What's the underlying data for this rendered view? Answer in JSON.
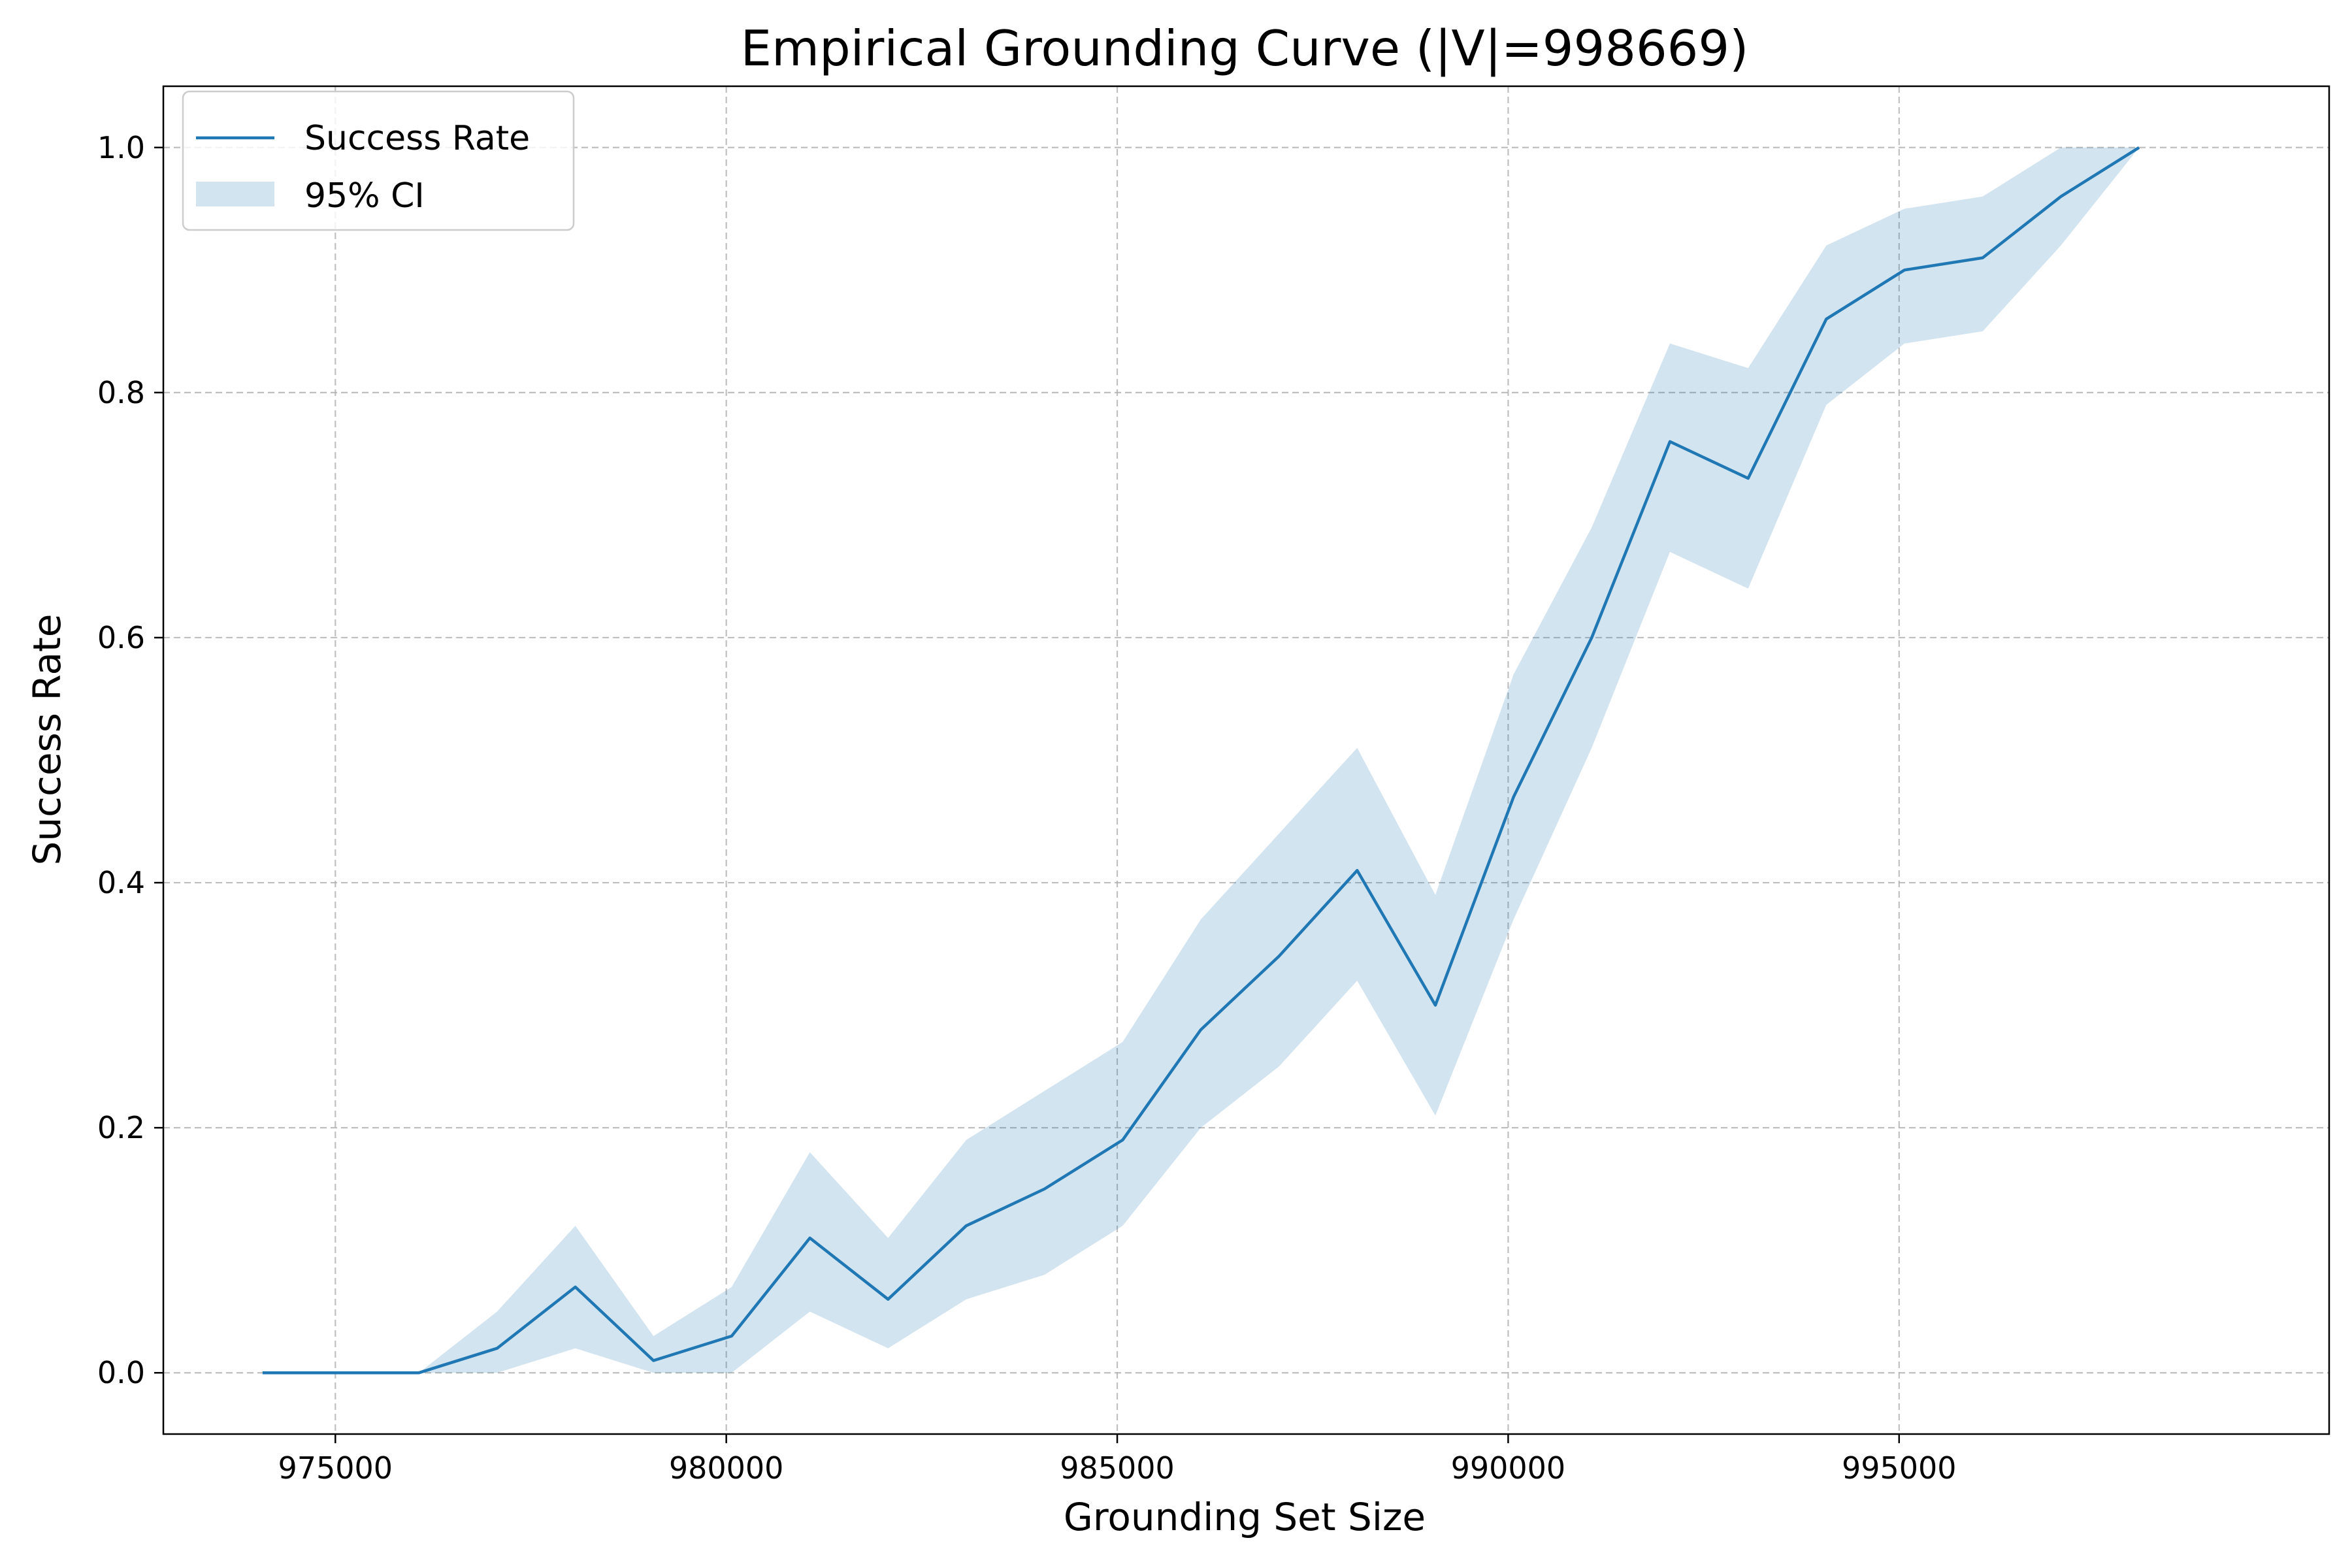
{
  "chart_data": {
    "type": "line",
    "title": "Empirical Grounding Curve (|V|=998669)",
    "xlabel": "Grounding Set Size",
    "ylabel": "Success Rate",
    "xlim": [
      972800,
      1000500
    ],
    "ylim": [
      -0.05,
      1.05
    ],
    "xticks": [
      975000,
      980000,
      985000,
      990000,
      995000
    ],
    "xtick_labels": [
      "975000",
      "980000",
      "985000",
      "990000",
      "995000"
    ],
    "yticks": [
      0.0,
      0.2,
      0.4,
      0.6,
      0.8,
      1.0
    ],
    "ytick_labels": [
      "0.0",
      "0.2",
      "0.4",
      "0.6",
      "0.8",
      "1.0"
    ],
    "grid": true,
    "legend_position": "top-left",
    "x": [
      974069,
      975069,
      976069,
      977069,
      978069,
      979069,
      980069,
      981069,
      982069,
      983069,
      984069,
      985069,
      986069,
      987069,
      988069,
      989069,
      990069,
      991069,
      992069,
      993069,
      994069,
      995069,
      996069,
      997069,
      998069
    ],
    "series": [
      {
        "name": "Success Rate",
        "color": "#1f77b4",
        "values": [
          0.0,
          0.0,
          0.0,
          0.02,
          0.07,
          0.01,
          0.03,
          0.11,
          0.06,
          0.12,
          0.15,
          0.19,
          0.28,
          0.34,
          0.41,
          0.3,
          0.47,
          0.6,
          0.76,
          0.73,
          0.86,
          0.9,
          0.91,
          0.96,
          1.0
        ]
      }
    ],
    "confidence_band": {
      "name": "95% CI",
      "color": "#1f77b4",
      "lower": [
        0.0,
        0.0,
        0.0,
        0.0,
        0.02,
        0.0,
        0.0,
        0.05,
        0.02,
        0.06,
        0.08,
        0.12,
        0.2,
        0.25,
        0.32,
        0.21,
        0.37,
        0.51,
        0.67,
        0.64,
        0.79,
        0.84,
        0.85,
        0.92,
        1.0
      ],
      "upper": [
        0.0,
        0.0,
        0.0,
        0.05,
        0.12,
        0.03,
        0.07,
        0.18,
        0.11,
        0.19,
        0.23,
        0.27,
        0.37,
        0.44,
        0.51,
        0.39,
        0.57,
        0.69,
        0.84,
        0.82,
        0.92,
        0.95,
        0.96,
        1.0,
        1.0
      ]
    }
  }
}
